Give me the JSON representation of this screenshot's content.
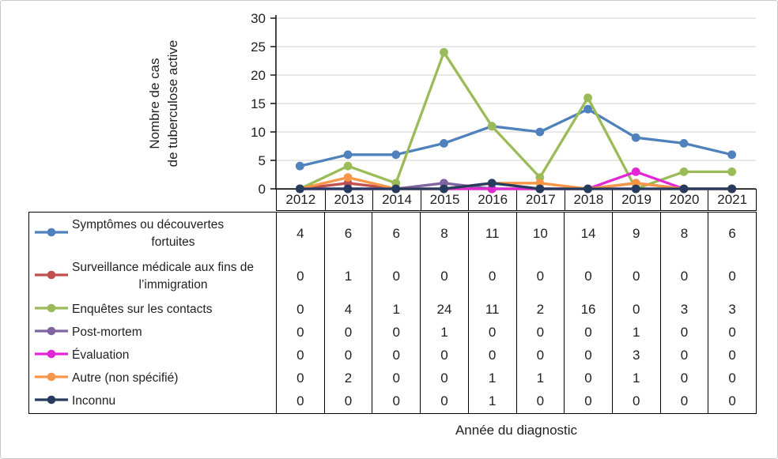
{
  "chart_data": {
    "type": "line",
    "title": "",
    "xlabel": "Année du diagnostic",
    "ylabel": "Nombre de cas de tuberculose active",
    "ylabel_lines": [
      "Nombre de cas",
      "de tuberculose active"
    ],
    "categories": [
      "2012",
      "2013",
      "2014",
      "2015",
      "2016",
      "2017",
      "2018",
      "2019",
      "2020",
      "2021"
    ],
    "ylim": [
      0,
      30
    ],
    "yticks": [
      0,
      5,
      10,
      15,
      20,
      25,
      30
    ],
    "grid": true,
    "grid_color": "#D9D9D9",
    "axis_color": "#1a1a1a",
    "legend_position": "table-left",
    "series": [
      {
        "name": "Symptômes ou découvertes fortuites",
        "name_lines": [
          "Symptômes ou découvertes",
          "fortuites"
        ],
        "color": "#4F81BD",
        "values": [
          4,
          6,
          6,
          8,
          11,
          10,
          14,
          9,
          8,
          6
        ]
      },
      {
        "name": "Surveillance médicale aux fins de l’immigration",
        "name_lines": [
          "Surveillance médicale aux fins de",
          "l’immigration"
        ],
        "color": "#C0504D",
        "values": [
          0,
          1,
          0,
          0,
          0,
          0,
          0,
          0,
          0,
          0
        ]
      },
      {
        "name": "Enquêtes sur les contacts",
        "name_lines": [
          "Enquêtes sur les contacts"
        ],
        "color": "#9BBB59",
        "values": [
          0,
          4,
          1,
          24,
          11,
          2,
          16,
          0,
          3,
          3
        ]
      },
      {
        "name": "Post-mortem",
        "name_lines": [
          "Post-mortem"
        ],
        "color": "#8064A2",
        "values": [
          0,
          0,
          0,
          1,
          0,
          0,
          0,
          1,
          0,
          0
        ]
      },
      {
        "name": "Évaluation",
        "name_lines": [
          "Évaluation"
        ],
        "color": "#E228D5",
        "values": [
          0,
          0,
          0,
          0,
          0,
          0,
          0,
          3,
          0,
          0
        ]
      },
      {
        "name": "Autre (non spécifié)",
        "name_lines": [
          "Autre (non spécifié)"
        ],
        "color": "#F79646",
        "values": [
          0,
          2,
          0,
          0,
          1,
          1,
          0,
          1,
          0,
          0
        ]
      },
      {
        "name": "Inconnu",
        "name_lines": [
          "Inconnu"
        ],
        "color": "#263C5F",
        "values": [
          0,
          0,
          0,
          0,
          1,
          0,
          0,
          0,
          0,
          0
        ]
      }
    ]
  }
}
